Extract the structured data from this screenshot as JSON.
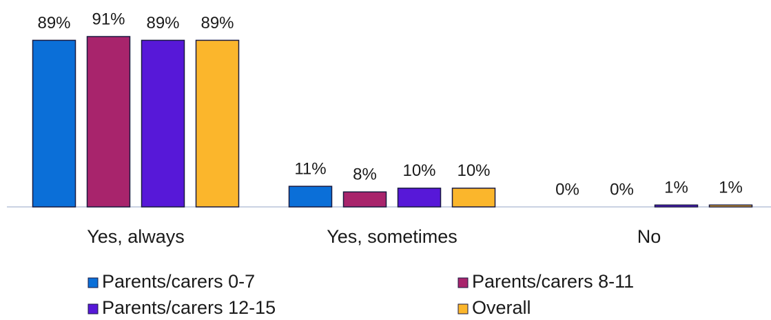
{
  "chart_data": {
    "type": "bar",
    "categories": [
      "Yes, always",
      "Yes, sometimes",
      "No"
    ],
    "series": [
      {
        "name": "Parents/carers 0-7",
        "color": "#0b6fd8",
        "values": [
          89,
          11,
          0
        ],
        "value_labels": [
          "89%",
          "11%",
          "0%"
        ]
      },
      {
        "name": "Parents/carers 8-11",
        "color": "#a8246c",
        "values": [
          91,
          8,
          0
        ],
        "value_labels": [
          "91%",
          "8%",
          "0%"
        ]
      },
      {
        "name": "Parents/carers 12-15",
        "color": "#5718d8",
        "values": [
          89,
          10,
          1
        ],
        "value_labels": [
          "89%",
          "10%",
          "1%"
        ]
      },
      {
        "name": "Overall",
        "color": "#fbb62c",
        "values": [
          89,
          10,
          1
        ],
        "value_labels": [
          "89%",
          "10%",
          "1%"
        ]
      }
    ]
  }
}
